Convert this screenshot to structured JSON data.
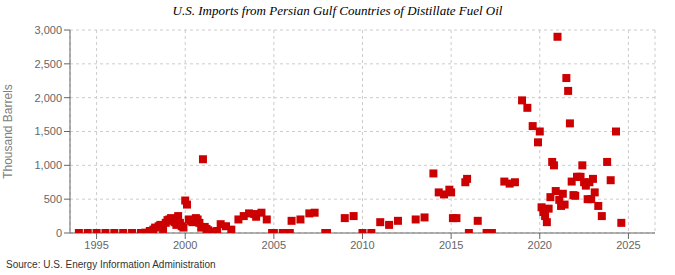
{
  "chart_data": {
    "type": "scatter",
    "title": "U.S. Imports from Persian Gulf Countries of Distillate Fuel Oil",
    "y_label": "Thousand Barrels",
    "annotations": [
      "Source: U.S. Energy Information Administration"
    ],
    "color": "#cc0000",
    "marker": "square",
    "grid": true,
    "xlim": [
      1993.5,
      2026.5
    ],
    "xticks": [
      1995,
      2000,
      2005,
      2010,
      2015,
      2020,
      2025
    ],
    "ylim": [
      0,
      3000
    ],
    "yticks": [
      0,
      500,
      {
        "value": 1000,
        "label": "1,000"
      },
      {
        "value": 1500,
        "label": "1,500"
      },
      {
        "value": 2000,
        "label": "2,000"
      },
      {
        "value": 2500,
        "label": "2,500"
      },
      {
        "value": 3000,
        "label": "3,000"
      }
    ],
    "x": [
      1994.0,
      1994.5,
      1995.0,
      1995.5,
      1996.0,
      1996.5,
      1997.0,
      1997.5,
      1997.75,
      1998.0,
      1998.1,
      1998.2,
      1998.3,
      1998.5,
      1998.6,
      1998.75,
      1998.9,
      1999.0,
      1999.1,
      1999.2,
      1999.3,
      1999.4,
      1999.5,
      1999.6,
      1999.7,
      1999.8,
      1999.9,
      2000.0,
      2000.1,
      2000.2,
      2000.3,
      2000.4,
      2000.5,
      2000.6,
      2000.7,
      2000.8,
      2000.9,
      2001.0,
      2001.1,
      2001.2,
      2001.3,
      2001.5,
      2001.8,
      2002.0,
      2002.3,
      2002.6,
      2003.0,
      2003.3,
      2003.6,
      2003.9,
      2004.0,
      2004.3,
      2004.6,
      2004.9,
      2005.0,
      2005.5,
      2005.9,
      2006.0,
      2006.5,
      2007.0,
      2007.3,
      2007.9,
      2008.0,
      2009.0,
      2009.5,
      2010.0,
      2010.5,
      2011.0,
      2011.5,
      2012.0,
      2013.0,
      2013.5,
      2014.0,
      2014.3,
      2014.6,
      2014.9,
      2015.0,
      2015.1,
      2015.3,
      2015.8,
      2015.9,
      2016.0,
      2016.5,
      2017.0,
      2017.3,
      2018.0,
      2018.3,
      2018.6,
      2019.0,
      2019.3,
      2019.6,
      2019.9,
      2020.0,
      2020.1,
      2020.2,
      2020.3,
      2020.4,
      2020.5,
      2020.6,
      2020.7,
      2020.8,
      2020.9,
      2021.0,
      2021.1,
      2021.2,
      2021.3,
      2021.4,
      2021.5,
      2021.6,
      2021.7,
      2021.8,
      2021.9,
      2022.0,
      2022.1,
      2022.2,
      2022.3,
      2022.4,
      2022.5,
      2022.6,
      2022.7,
      2022.8,
      2022.9,
      2023.0,
      2023.1,
      2023.3,
      2023.5,
      2023.8,
      2024.0,
      2024.3,
      2024.6
    ],
    "values": [
      0,
      0,
      0,
      0,
      0,
      0,
      0,
      0,
      5,
      30,
      15,
      50,
      80,
      100,
      120,
      60,
      150,
      190,
      200,
      220,
      180,
      160,
      120,
      250,
      150,
      100,
      80,
      480,
      420,
      200,
      180,
      160,
      180,
      220,
      200,
      150,
      80,
      1090,
      90,
      60,
      40,
      20,
      30,
      130,
      100,
      50,
      200,
      250,
      290,
      280,
      240,
      300,
      200,
      0,
      0,
      0,
      0,
      180,
      200,
      290,
      300,
      0,
      0,
      220,
      250,
      0,
      0,
      160,
      120,
      180,
      200,
      230,
      880,
      600,
      570,
      640,
      600,
      220,
      220,
      750,
      800,
      0,
      180,
      0,
      0,
      760,
      730,
      750,
      1960,
      1850,
      1580,
      1340,
      1500,
      380,
      310,
      250,
      160,
      360,
      530,
      1050,
      1000,
      620,
      2900,
      490,
      400,
      580,
      420,
      2290,
      2100,
      1620,
      760,
      560,
      550,
      830,
      830,
      830,
      1000,
      750,
      700,
      500,
      750,
      500,
      800,
      600,
      400,
      250,
      1050,
      780,
      1500,
      150
    ]
  }
}
